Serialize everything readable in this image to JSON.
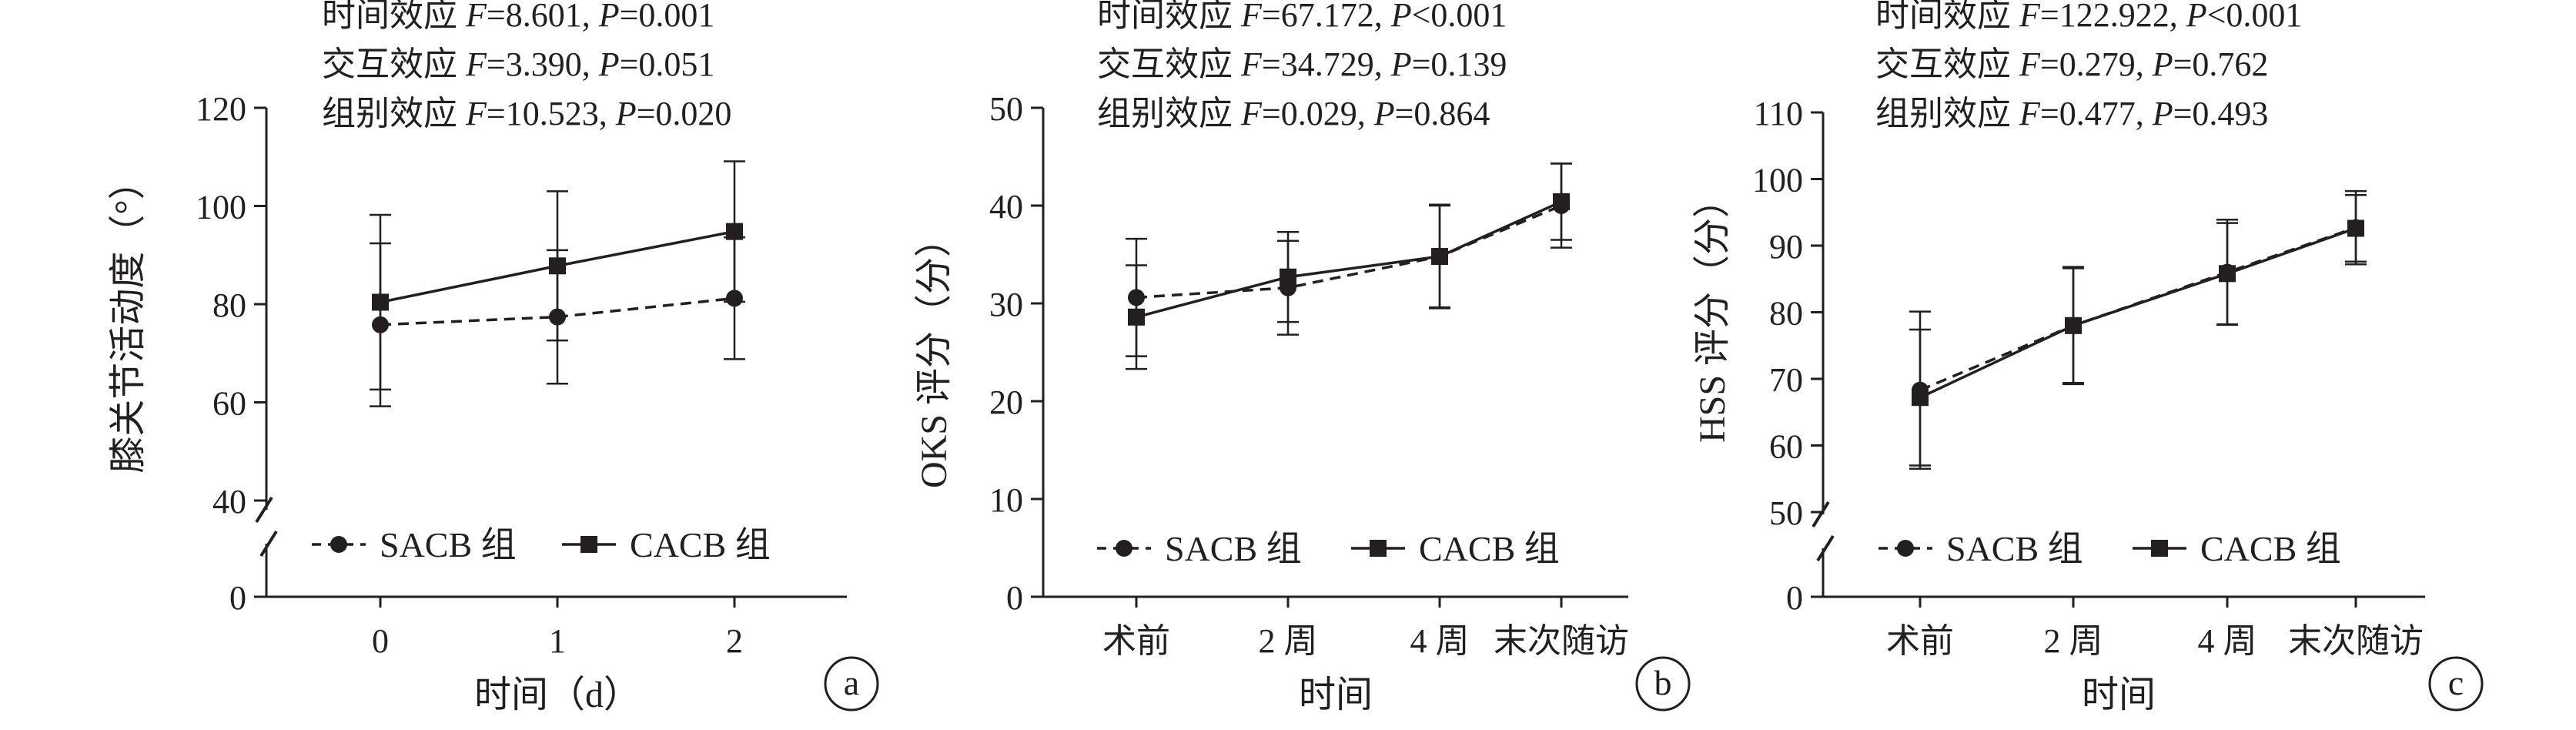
{
  "chart_data": [
    {
      "type": "line",
      "panel_label": "a",
      "stats": [
        {
          "name": "时间效应",
          "F": "8.601",
          "P_op": "=",
          "P": "0.001"
        },
        {
          "name": "交互效应",
          "F": "3.390",
          "P_op": "=",
          "P": "0.051"
        },
        {
          "name": "组别效应",
          "F": "10.523",
          "P_op": "=",
          "P": "0.020"
        }
      ],
      "ylabel": "膝关节活动度（°）",
      "xlabel": "时间（d）",
      "x": [
        "0",
        "1",
        "2"
      ],
      "ylim": [
        0,
        120
      ],
      "axis_break": [
        0,
        40
      ],
      "y_ticks": [
        0,
        40,
        60,
        80,
        100,
        120
      ],
      "series": [
        {
          "name": "SACB 组",
          "style": "dashed",
          "marker": "circle",
          "values": [
            75.8,
            77.4,
            81.2
          ],
          "error": [
            16.6,
            13.6,
            12.4
          ]
        },
        {
          "name": "CACB 组",
          "style": "solid",
          "marker": "square",
          "values": [
            80.4,
            87.8,
            94.8
          ],
          "error": [
            17.8,
            15.2,
            14.3
          ]
        }
      ]
    },
    {
      "type": "line",
      "panel_label": "b",
      "stats": [
        {
          "name": "时间效应",
          "F": "67.172",
          "P_op": "<",
          "P": "0.001"
        },
        {
          "name": "交互效应",
          "F": "34.729",
          "P_op": "=",
          "P": "0.139"
        },
        {
          "name": "组别效应",
          "F": "0.029",
          "P_op": "=",
          "P": "0.864"
        }
      ],
      "ylabel": "OKS 评分（分）",
      "xlabel": "时间",
      "x": [
        "术前",
        "2 周",
        "4 周",
        "末次随访"
      ],
      "ylim": [
        0,
        50
      ],
      "y_ticks": [
        0,
        10,
        20,
        30,
        40,
        50
      ],
      "series": [
        {
          "name": "SACB 组",
          "style": "dashed",
          "marker": "circle",
          "values": [
            30.6,
            31.6,
            34.8,
            40.0
          ],
          "error": [
            6.0,
            4.8,
            5.2,
            4.3
          ]
        },
        {
          "name": "CACB 组",
          "style": "solid",
          "marker": "square",
          "values": [
            28.6,
            32.7,
            34.8,
            40.4
          ],
          "error": [
            5.3,
            4.6,
            5.3,
            3.9
          ]
        }
      ]
    },
    {
      "type": "line",
      "panel_label": "c",
      "stats": [
        {
          "name": "时间效应",
          "F": "122.922",
          "P_op": "<",
          "P": "0.001"
        },
        {
          "name": "交互效应",
          "F": "0.279",
          "P_op": "=",
          "P": "0.762"
        },
        {
          "name": "组别效应",
          "F": "0.477",
          "P_op": "=",
          "P": "0.493"
        }
      ],
      "ylabel": "HSS 评分（分）",
      "xlabel": "时间",
      "x": [
        "术前",
        "2 周",
        "4 周",
        "末次随访"
      ],
      "ylim": [
        0,
        110
      ],
      "axis_break": [
        0,
        50
      ],
      "y_ticks": [
        0,
        50,
        60,
        70,
        80,
        90,
        100,
        110
      ],
      "series": [
        {
          "name": "SACB 组",
          "style": "dashed",
          "marker": "circle",
          "values": [
            68.3,
            78.0,
            86.0,
            92.7
          ],
          "error": [
            11.8,
            8.6,
            7.9,
            5.5
          ]
        },
        {
          "name": "CACB 组",
          "style": "solid",
          "marker": "square",
          "values": [
            67.2,
            78.0,
            85.8,
            92.6
          ],
          "error": [
            10.2,
            8.8,
            7.6,
            5.0
          ]
        }
      ]
    }
  ]
}
